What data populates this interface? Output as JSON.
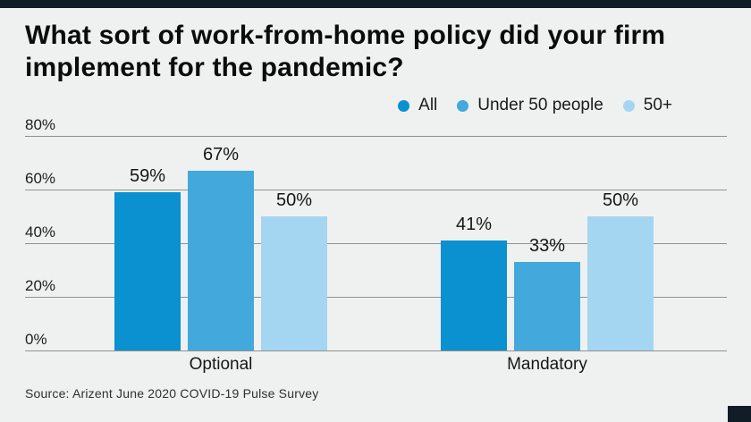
{
  "page": {
    "background_color": "#eff1f0",
    "accent_color": "#101c26"
  },
  "header": {
    "title": "What sort of work-from-home policy did your firm implement for the pandemic?"
  },
  "legend": {
    "items": [
      {
        "label": "All",
        "color": "#0b90d0"
      },
      {
        "label": "Under 50 people",
        "color": "#43a9dc"
      },
      {
        "label": "50+",
        "color": "#a4d6f1"
      }
    ]
  },
  "chart_data": {
    "type": "bar",
    "title": "What sort of work-from-home policy did your firm implement for the pandemic?",
    "categories": [
      "Optional",
      "Mandatory"
    ],
    "series": [
      {
        "name": "All",
        "color": "#0b90d0",
        "values": [
          59,
          41
        ]
      },
      {
        "name": "Under 50 people",
        "color": "#43a9dc",
        "values": [
          67,
          33
        ]
      },
      {
        "name": "50+",
        "color": "#a4d6f1",
        "values": [
          50,
          50
        ]
      }
    ],
    "value_label_format": "{v}%",
    "yticks": [
      {
        "label": "80%",
        "value": 80
      },
      {
        "label": "60%",
        "value": 60
      },
      {
        "label": "40%",
        "value": 40
      },
      {
        "label": "20%",
        "value": 20
      },
      {
        "label": "0%",
        "value": 0
      }
    ],
    "ylim": [
      0,
      80
    ],
    "grid": true,
    "gridline_color": "#8e9290",
    "legend_position": "top-right"
  },
  "footer": {
    "source": "Source: Arizent June 2020 COVID-19 Pulse Survey"
  }
}
